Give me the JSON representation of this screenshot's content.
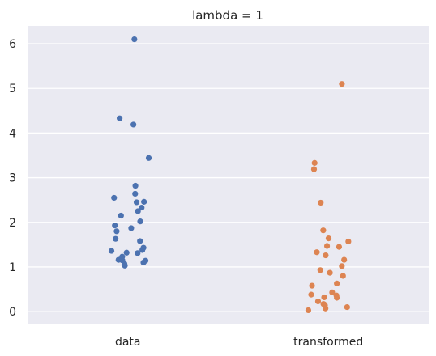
{
  "chart_data": {
    "type": "scatter",
    "subtype": "strip",
    "title": "lambda = 1",
    "xlabel": "",
    "ylabel": "",
    "categories": [
      "data",
      "transformed"
    ],
    "ylim": [
      -0.27,
      6.4
    ],
    "yticks": [
      "0",
      "1",
      "2",
      "3",
      "4",
      "5",
      "6"
    ],
    "grid": true,
    "background": "#eaeaf2",
    "series": [
      {
        "category": "data",
        "color": "#4c72b0",
        "values": [
          6.1,
          4.33,
          4.19,
          3.44,
          2.82,
          2.64,
          2.55,
          2.46,
          2.45,
          2.33,
          2.25,
          2.15,
          2.02,
          1.93,
          1.87,
          1.8,
          1.63,
          1.58,
          1.43,
          1.38,
          1.36,
          1.32,
          1.31,
          1.23,
          1.16,
          1.15,
          1.14,
          1.1,
          1.07,
          1.03
        ]
      },
      {
        "category": "transformed",
        "color": "#dd8452",
        "values": [
          5.1,
          3.33,
          3.19,
          2.44,
          1.82,
          1.64,
          1.57,
          1.47,
          1.45,
          1.33,
          1.26,
          1.16,
          1.02,
          0.93,
          0.87,
          0.8,
          0.63,
          0.58,
          0.43,
          0.38,
          0.36,
          0.32,
          0.31,
          0.23,
          0.17,
          0.16,
          0.14,
          0.1,
          0.07,
          0.03
        ]
      }
    ]
  }
}
